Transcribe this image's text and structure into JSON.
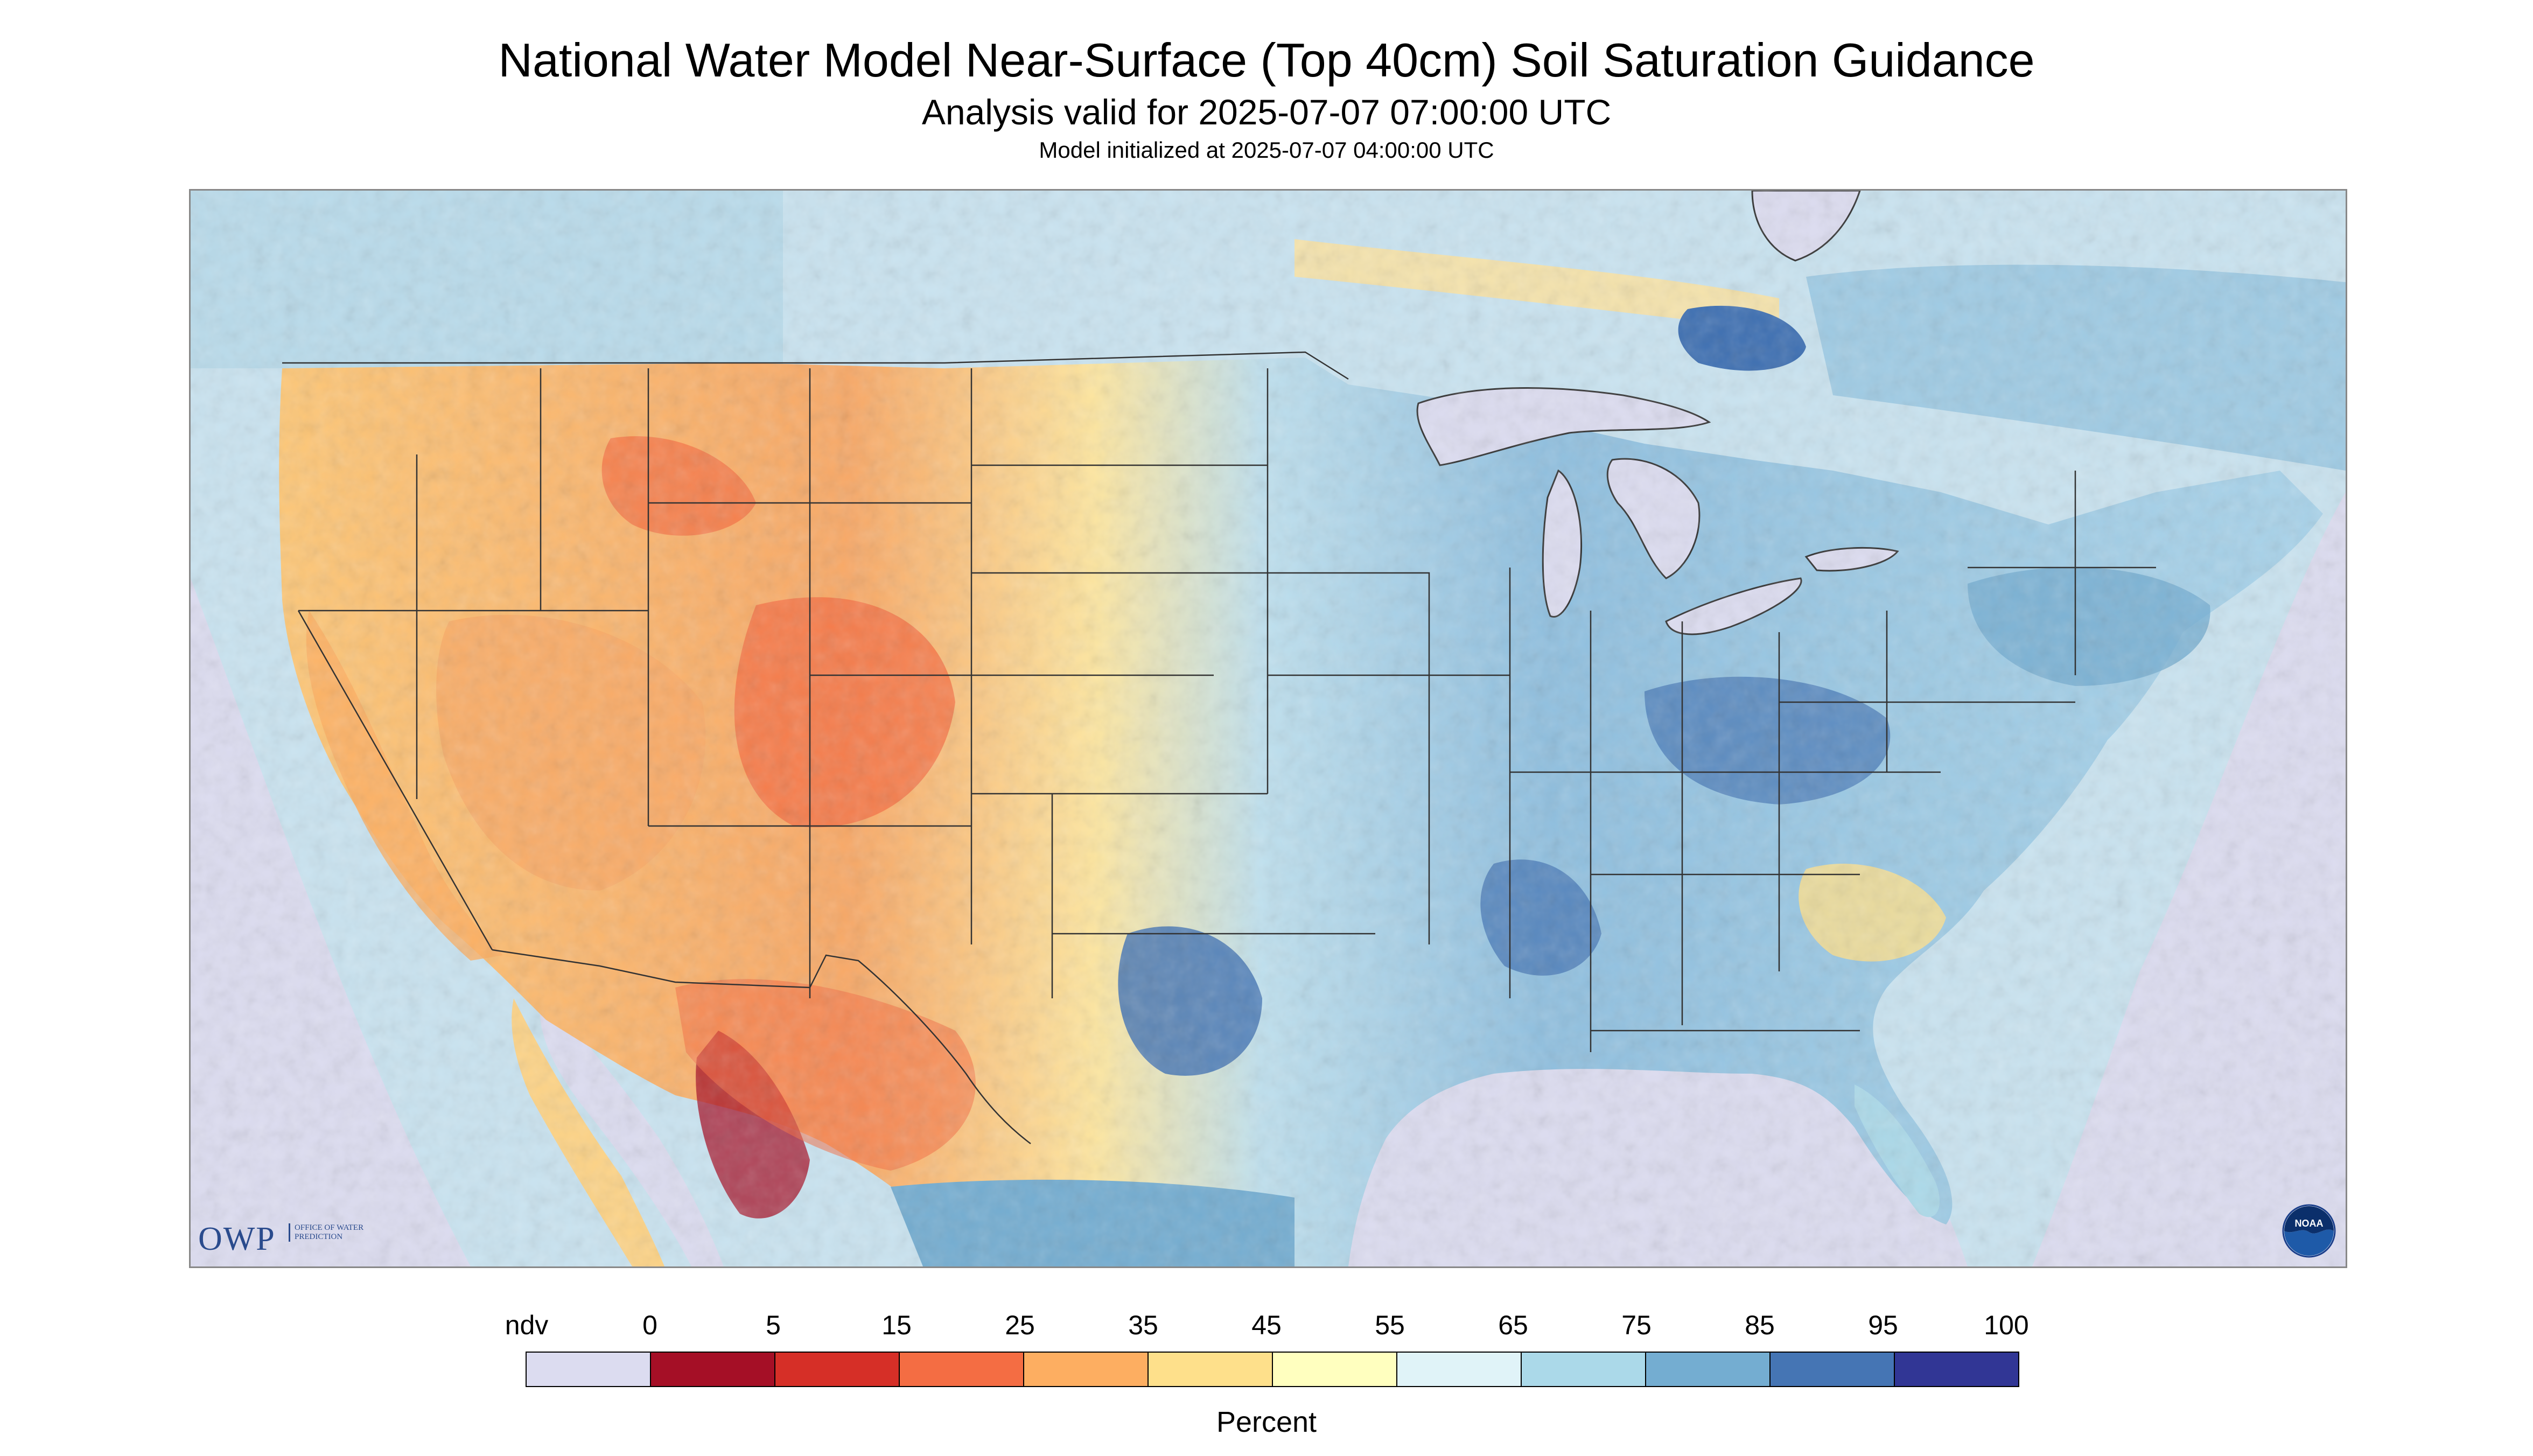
{
  "title": "National Water Model Near-Surface (Top 40cm) Soil Saturation Guidance",
  "subtitle": "Analysis valid for 2025-07-07 07:00:00 UTC",
  "init_line": "Model initialized at 2025-07-07 04:00:00 UTC",
  "logos": {
    "owp_letters": "OWP",
    "owp_full_name": "OFFICE OF WATER PREDICTION",
    "noaa_text": "NOAA"
  },
  "legend": {
    "unit": "Percent",
    "tick_labels": [
      "ndv",
      "0",
      "5",
      "15",
      "25",
      "35",
      "45",
      "55",
      "65",
      "75",
      "85",
      "95",
      "100"
    ],
    "colors": [
      "#dcdcf0",
      "#a50f26",
      "#d62f27",
      "#f46d43",
      "#fdae61",
      "#fee08b",
      "#ffffbf",
      "#e0f3f8",
      "#abd9e9",
      "#74add1",
      "#4575b4",
      "#313695"
    ]
  },
  "map": {
    "no_data_color": "#dcdcf0",
    "water_color": "#dcdcf0",
    "border_color": "#333333"
  }
}
